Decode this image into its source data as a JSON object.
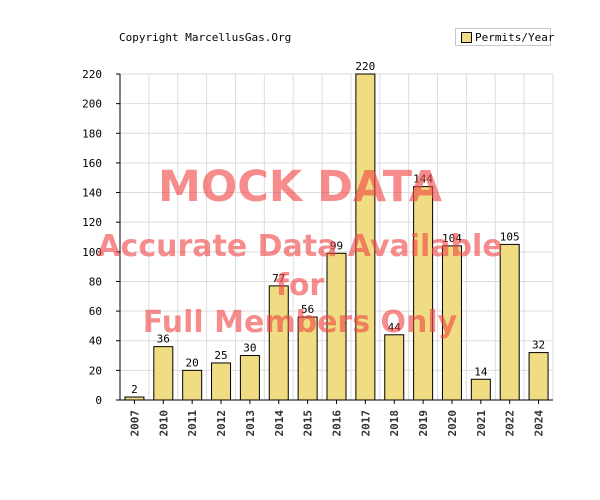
{
  "header": {
    "copyright": "Copyright MarcellusGas.Org"
  },
  "watermark": {
    "line1": "MOCK DATA",
    "line2": "Accurate Data Available",
    "line3": "for",
    "line4": "Full Members Only"
  },
  "colors": {
    "bar": "#f0dc82",
    "watermark": "#f04646",
    "grid": "#dddddd"
  },
  "chart_data": {
    "type": "bar",
    "title": "",
    "xlabel": "",
    "ylabel": "",
    "ylim": [
      0,
      220
    ],
    "yticks": [
      0,
      20,
      40,
      60,
      80,
      100,
      120,
      140,
      160,
      180,
      200,
      220
    ],
    "grid": true,
    "legend_position": "top-right",
    "categories": [
      "2007",
      "2010",
      "2011",
      "2012",
      "2013",
      "2014",
      "2015",
      "2016",
      "2017",
      "2018",
      "2019",
      "2020",
      "2021",
      "2022",
      "2024"
    ],
    "series": [
      {
        "name": "Permits/Year",
        "values": [
          2,
          36,
          20,
          25,
          30,
          77,
          56,
          99,
          220,
          44,
          144,
          104,
          14,
          105,
          32
        ]
      }
    ]
  }
}
